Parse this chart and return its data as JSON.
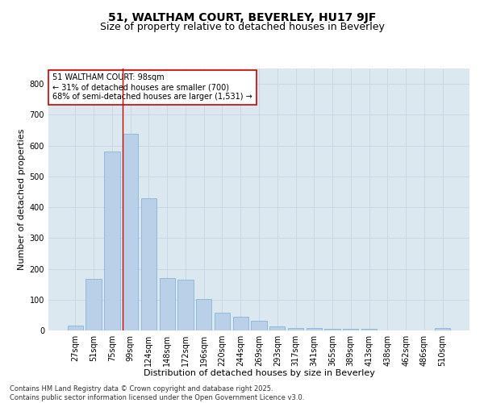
{
  "title1": "51, WALTHAM COURT, BEVERLEY, HU17 9JF",
  "title2": "Size of property relative to detached houses in Beverley",
  "xlabel": "Distribution of detached houses by size in Beverley",
  "ylabel": "Number of detached properties",
  "bar_color": "#bad0e8",
  "bar_edge_color": "#7aaed4",
  "categories": [
    "27sqm",
    "51sqm",
    "75sqm",
    "99sqm",
    "124sqm",
    "148sqm",
    "172sqm",
    "196sqm",
    "220sqm",
    "244sqm",
    "269sqm",
    "293sqm",
    "317sqm",
    "341sqm",
    "365sqm",
    "389sqm",
    "413sqm",
    "438sqm",
    "462sqm",
    "486sqm",
    "510sqm"
  ],
  "values": [
    17,
    168,
    580,
    638,
    430,
    170,
    165,
    103,
    57,
    45,
    32,
    12,
    8,
    8,
    5,
    5,
    5,
    0,
    0,
    0,
    7
  ],
  "vline_x_index": 3,
  "vline_color": "#cc0000",
  "annotation_line1": "51 WALTHAM COURT: 98sqm",
  "annotation_line2": "← 31% of detached houses are smaller (700)",
  "annotation_line3": "68% of semi-detached houses are larger (1,531) →",
  "annotation_box_color": "#ffffff",
  "annotation_box_edge": "#cc0000",
  "ylim": [
    0,
    850
  ],
  "yticks": [
    0,
    100,
    200,
    300,
    400,
    500,
    600,
    700,
    800
  ],
  "grid_color": "#c8d4e8",
  "bg_color": "#dce8f0",
  "footer": "Contains HM Land Registry data © Crown copyright and database right 2025.\nContains public sector information licensed under the Open Government Licence v3.0.",
  "title_fontsize": 10,
  "subtitle_fontsize": 9,
  "axis_label_fontsize": 8,
  "tick_fontsize": 7,
  "annotation_fontsize": 7,
  "footer_fontsize": 6
}
